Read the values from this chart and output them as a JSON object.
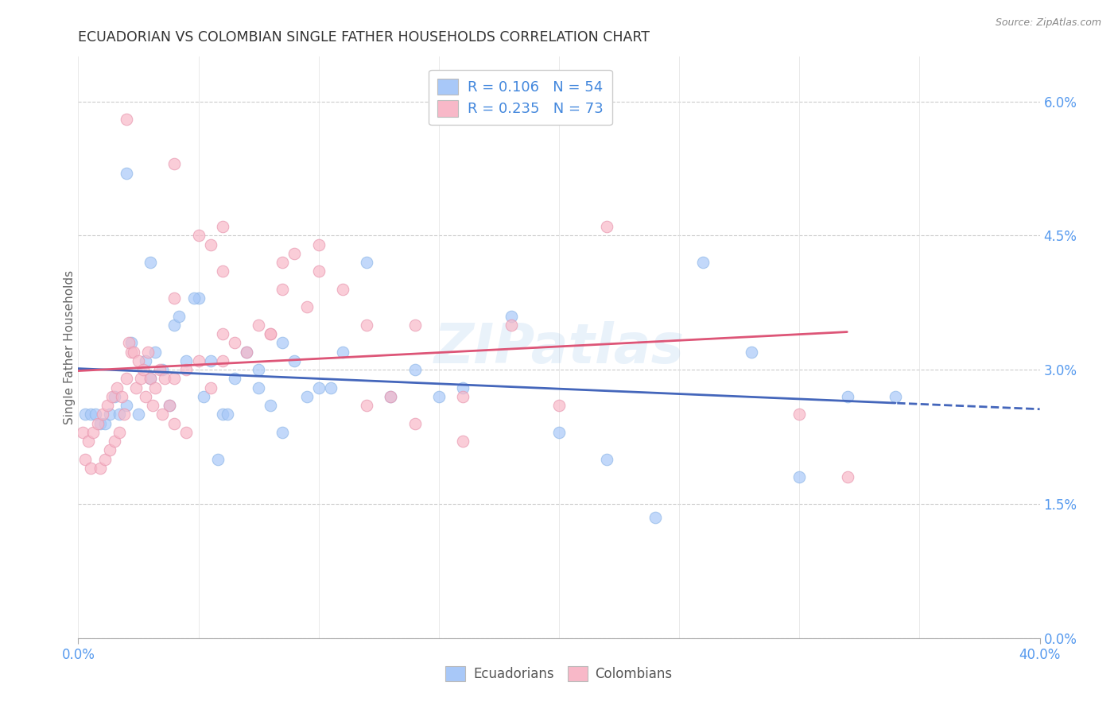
{
  "title": "ECUADORIAN VS COLOMBIAN SINGLE FATHER HOUSEHOLDS CORRELATION CHART",
  "source": "Source: ZipAtlas.com",
  "ylabel": "Single Father Households",
  "ytick_labels": [
    "0.0%",
    "1.5%",
    "3.0%",
    "4.5%",
    "6.0%"
  ],
  "ytick_vals": [
    0.0,
    1.5,
    3.0,
    4.5,
    6.0
  ],
  "xmin": 0.0,
  "xmax": 40.0,
  "ymin": 0.0,
  "ymax": 6.5,
  "legend_blue_r": "0.106",
  "legend_blue_n": "54",
  "legend_pink_r": "0.235",
  "legend_pink_n": "73",
  "blue_color": "#a8c8f8",
  "pink_color": "#f8b8c8",
  "blue_line_color": "#4466bb",
  "pink_line_color": "#dd5577",
  "blue_solid_max_x": 34.0,
  "pink_solid_max_x": 32.0,
  "blue_scatter_x": [
    1.5,
    2.0,
    2.5,
    3.0,
    3.5,
    4.0,
    4.5,
    5.0,
    5.5,
    6.0,
    6.5,
    7.0,
    7.5,
    8.0,
    8.5,
    9.0,
    9.5,
    10.0,
    11.0,
    12.0,
    13.0,
    14.0,
    15.0,
    16.0,
    18.0,
    20.0,
    22.0,
    24.0,
    26.0,
    28.0,
    30.0,
    32.0,
    34.0,
    0.3,
    0.5,
    0.7,
    0.9,
    1.1,
    1.3,
    1.7,
    2.2,
    2.8,
    3.2,
    3.8,
    4.2,
    4.8,
    5.2,
    5.8,
    6.2,
    7.5,
    8.5,
    10.5,
    2.0,
    3.0
  ],
  "blue_scatter_y": [
    2.7,
    2.6,
    2.5,
    2.9,
    3.0,
    3.5,
    3.1,
    3.8,
    3.1,
    2.5,
    2.9,
    3.2,
    2.8,
    2.6,
    3.3,
    3.1,
    2.7,
    2.8,
    3.2,
    4.2,
    2.7,
    3.0,
    2.7,
    2.8,
    3.6,
    2.3,
    2.0,
    1.35,
    4.2,
    3.2,
    1.8,
    2.7,
    2.7,
    2.5,
    2.5,
    2.5,
    2.4,
    2.4,
    2.5,
    2.5,
    3.3,
    3.1,
    3.2,
    2.6,
    3.6,
    3.8,
    2.7,
    2.0,
    2.5,
    3.0,
    2.3,
    2.8,
    5.2,
    4.2
  ],
  "pink_scatter_x": [
    0.2,
    0.4,
    0.6,
    0.8,
    1.0,
    1.2,
    1.4,
    1.6,
    1.8,
    2.0,
    2.2,
    2.4,
    2.6,
    2.8,
    3.0,
    3.2,
    3.4,
    3.6,
    3.8,
    4.0,
    4.5,
    5.0,
    5.5,
    6.0,
    6.5,
    7.0,
    7.5,
    8.0,
    8.5,
    9.0,
    9.5,
    10.0,
    11.0,
    12.0,
    13.0,
    14.0,
    16.0,
    18.0,
    20.0,
    22.0,
    0.3,
    0.5,
    0.9,
    1.1,
    1.3,
    1.5,
    1.7,
    1.9,
    2.1,
    2.3,
    2.5,
    2.7,
    2.9,
    3.1,
    3.5,
    4.0,
    4.5,
    5.0,
    5.5,
    6.0,
    8.0,
    10.0,
    12.0,
    4.0,
    6.0,
    8.5,
    30.0,
    32.0,
    16.0,
    14.0,
    2.0,
    4.0,
    6.0
  ],
  "pink_scatter_y": [
    2.3,
    2.2,
    2.3,
    2.4,
    2.5,
    2.6,
    2.7,
    2.8,
    2.7,
    2.9,
    3.2,
    2.8,
    2.9,
    2.7,
    2.9,
    2.8,
    3.0,
    2.9,
    2.6,
    2.9,
    3.0,
    3.1,
    2.8,
    3.1,
    3.3,
    3.2,
    3.5,
    3.4,
    3.9,
    4.3,
    3.7,
    4.4,
    3.9,
    2.6,
    2.7,
    2.4,
    2.2,
    3.5,
    2.6,
    4.6,
    2.0,
    1.9,
    1.9,
    2.0,
    2.1,
    2.2,
    2.3,
    2.5,
    3.3,
    3.2,
    3.1,
    3.0,
    3.2,
    2.6,
    2.5,
    2.4,
    2.3,
    4.5,
    4.4,
    3.4,
    3.4,
    4.1,
    3.5,
    3.8,
    4.1,
    4.2,
    2.5,
    1.8,
    2.7,
    3.5,
    5.8,
    5.3,
    4.6
  ]
}
